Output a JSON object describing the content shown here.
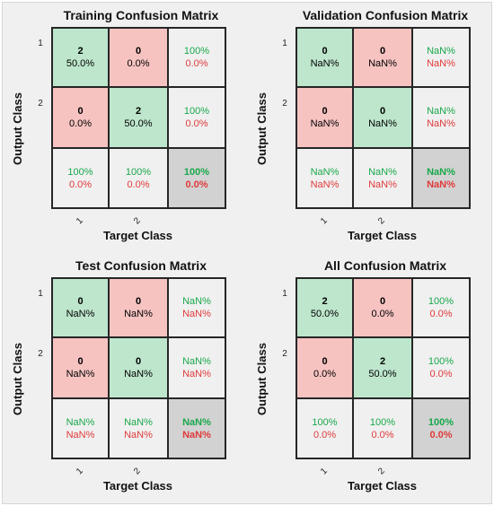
{
  "colors": {
    "correct_fill": "#bde6cc",
    "wrong_fill": "#f6c3c1",
    "margin_fill": "#f0f0f0",
    "total_fill": "#d2d2d2",
    "green_text": "#18a84a",
    "red_text": "#e03a3a"
  },
  "chart_data": [
    {
      "type": "heatmap",
      "title": "Training Confusion Matrix",
      "xlabel": "Target Class",
      "ylabel": "Output Class",
      "classes": [
        "1",
        "2"
      ],
      "counts": [
        [
          2,
          0
        ],
        [
          0,
          2
        ]
      ],
      "cell_pct": [
        [
          "50.0%",
          "0.0%"
        ],
        [
          "0.0%",
          "50.0%"
        ]
      ],
      "row_summary": [
        [
          "100%",
          "0.0%"
        ],
        [
          "100%",
          "0.0%"
        ]
      ],
      "col_summary": [
        [
          "100%",
          "0.0%"
        ],
        [
          "100%",
          "0.0%"
        ]
      ],
      "total": [
        "100%",
        "0.0%"
      ]
    },
    {
      "type": "heatmap",
      "title": "Validation Confusion Matrix",
      "xlabel": "Target Class",
      "ylabel": "Output Class",
      "classes": [
        "1",
        "2"
      ],
      "counts": [
        [
          0,
          0
        ],
        [
          0,
          0
        ]
      ],
      "cell_pct": [
        [
          "NaN%",
          "NaN%"
        ],
        [
          "NaN%",
          "NaN%"
        ]
      ],
      "row_summary": [
        [
          "NaN%",
          "NaN%"
        ],
        [
          "NaN%",
          "NaN%"
        ]
      ],
      "col_summary": [
        [
          "NaN%",
          "NaN%"
        ],
        [
          "NaN%",
          "NaN%"
        ]
      ],
      "total": [
        "NaN%",
        "NaN%"
      ]
    },
    {
      "type": "heatmap",
      "title": "Test Confusion Matrix",
      "xlabel": "Target Class",
      "ylabel": "Output Class",
      "classes": [
        "1",
        "2"
      ],
      "counts": [
        [
          0,
          0
        ],
        [
          0,
          0
        ]
      ],
      "cell_pct": [
        [
          "NaN%",
          "NaN%"
        ],
        [
          "NaN%",
          "NaN%"
        ]
      ],
      "row_summary": [
        [
          "NaN%",
          "NaN%"
        ],
        [
          "NaN%",
          "NaN%"
        ]
      ],
      "col_summary": [
        [
          "NaN%",
          "NaN%"
        ],
        [
          "NaN%",
          "NaN%"
        ]
      ],
      "total": [
        "NaN%",
        "NaN%"
      ]
    },
    {
      "type": "heatmap",
      "title": "All Confusion Matrix",
      "xlabel": "Target Class",
      "ylabel": "Output Class",
      "classes": [
        "1",
        "2"
      ],
      "counts": [
        [
          2,
          0
        ],
        [
          0,
          2
        ]
      ],
      "cell_pct": [
        [
          "50.0%",
          "0.0%"
        ],
        [
          "0.0%",
          "50.0%"
        ]
      ],
      "row_summary": [
        [
          "100%",
          "0.0%"
        ],
        [
          "100%",
          "0.0%"
        ]
      ],
      "col_summary": [
        [
          "100%",
          "0.0%"
        ],
        [
          "100%",
          "0.0%"
        ]
      ],
      "total": [
        "100%",
        "0.0%"
      ]
    }
  ]
}
